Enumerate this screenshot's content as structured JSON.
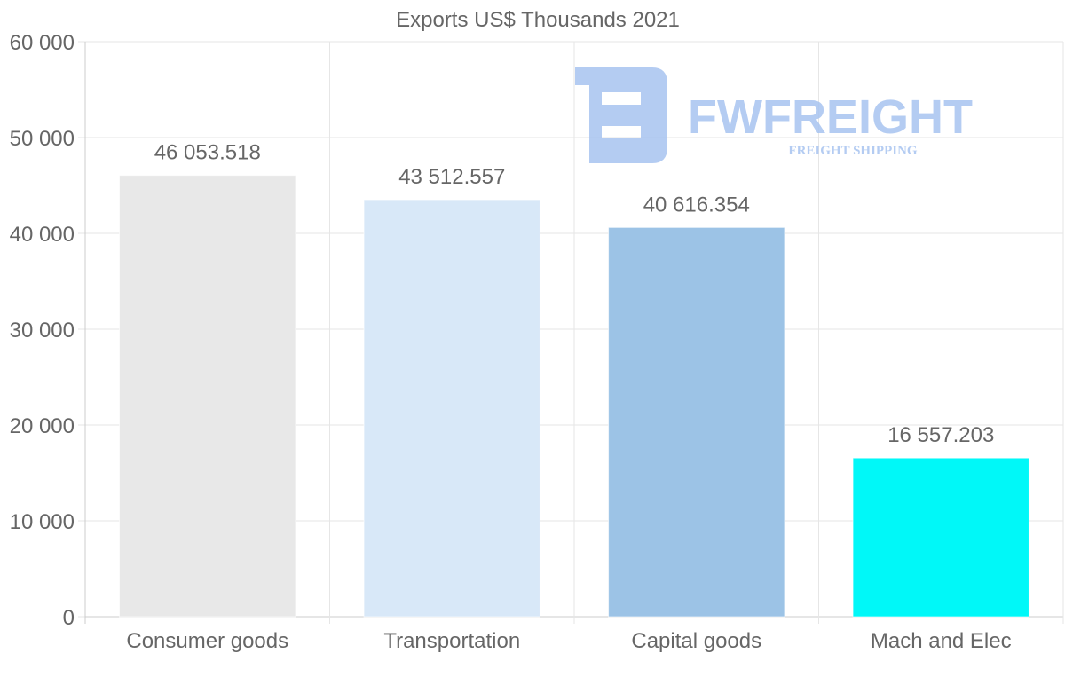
{
  "chart_data": {
    "type": "bar",
    "title": "Exports US$ Thousands 2021",
    "categories": [
      "Consumer goods",
      "Transportation",
      "Capital goods",
      "Mach and Elec"
    ],
    "values": [
      46053.518,
      43512.557,
      40616.354,
      16557.203
    ],
    "value_labels": [
      "46 053.518",
      "43 512.557",
      "40 616.354",
      "16 557.203"
    ],
    "bar_colors": [
      "#e8e8e8",
      "#d8e8f8",
      "#9cc3e6",
      "#00f8f8"
    ],
    "ylim": [
      0,
      60000
    ],
    "yticks": [
      0,
      10000,
      20000,
      30000,
      40000,
      50000,
      60000
    ],
    "ytick_labels": [
      "0",
      "10 000",
      "20 000",
      "30 000",
      "40 000",
      "50 000",
      "60 000"
    ],
    "xlabel": "",
    "ylabel": "",
    "grid": true,
    "legend": "none"
  },
  "watermark": {
    "brand": "FWFREIGHT",
    "tagline": "FREIGHT SHIPPING",
    "color": "#a8c4f0"
  }
}
